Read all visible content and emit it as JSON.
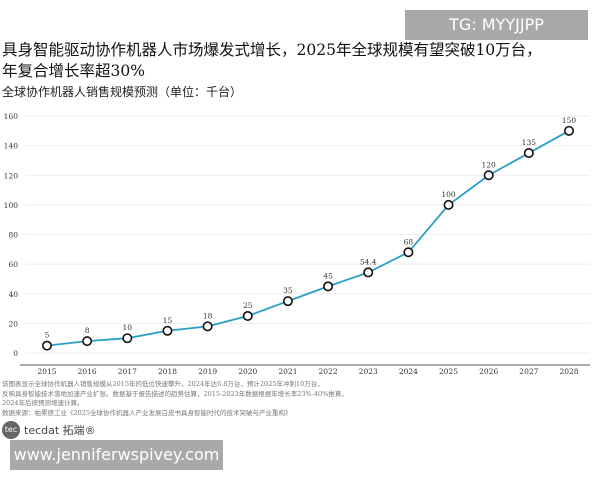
{
  "title_line1": "具身智能驱动协作机器人市场爆发式增长，2025年全球规模有望突破10万台，",
  "title_line2": "年复合增长率超30%",
  "watermark_tg": "TG: MYYJJPP",
  "watermark_url": "www.jenniferwspivey.com",
  "logo": {
    "text": "tecdat 拓端®"
  },
  "notes": [
    "该图表显示全球协作机器人销售规模从2015年的低位快速攀升，2024年达6.8万台，预计2025年冲刺10万台，",
    "反映具身智能技术落地加速产业扩张。数据基于报告描述的趋势估算，2015-2023年数据根据年增长率23%-40%推算，",
    "2024年后按预测增速计算。",
    "数据来源：帕累德工业《2025全球协作机器人产业发展白皮书具身智能时代的技术突破与产业重构》"
  ],
  "chart_data": {
    "type": "line",
    "title": "全球协作机器人销售规模预测（单位：千台）",
    "categories": [
      "2015",
      "2016",
      "2017",
      "2018",
      "2019",
      "2020",
      "2021",
      "2022",
      "2023",
      "2024",
      "2025",
      "2026",
      "2027",
      "2028"
    ],
    "values": [
      5,
      8,
      10,
      15,
      18,
      25,
      35,
      45,
      54.4,
      68,
      100,
      120,
      135,
      150
    ],
    "data_labels": [
      "5",
      "8",
      "10",
      "15",
      "18",
      "25",
      "35",
      "45",
      "54.4",
      "68",
      "100",
      "120",
      "135",
      "150"
    ],
    "yticks": [
      0,
      20,
      40,
      60,
      80,
      100,
      120,
      140,
      160
    ],
    "ylim": [
      0,
      160
    ],
    "grid": true,
    "line_color": "#2b9fc7",
    "marker_color": "#111111"
  }
}
